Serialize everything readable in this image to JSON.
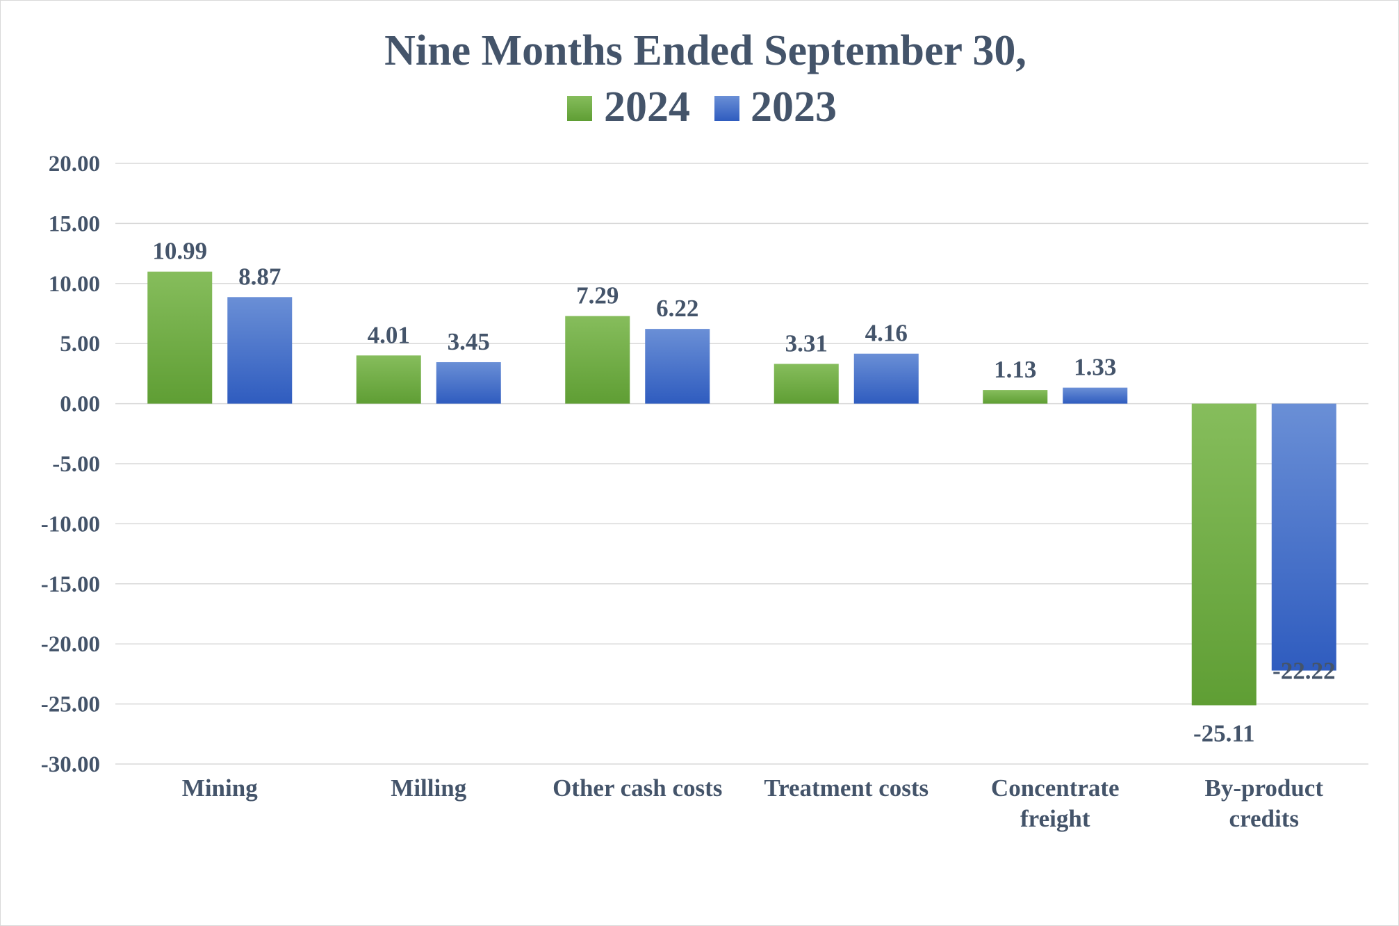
{
  "chart_data": {
    "type": "bar",
    "title": "Nine Months Ended September 30,",
    "categories": [
      "Mining",
      "Milling",
      "Other cash costs",
      "Treatment costs",
      "Concentrate freight",
      "By-product credits"
    ],
    "series": [
      {
        "name": "2024",
        "values": [
          10.99,
          4.01,
          7.29,
          3.31,
          1.13,
          -25.11
        ],
        "color": "#70ad47"
      },
      {
        "name": "2023",
        "values": [
          8.87,
          3.45,
          6.22,
          4.16,
          1.33,
          -22.22
        ],
        "color": "#4472c4"
      }
    ],
    "ylim": [
      -30,
      20
    ],
    "yticks": [
      "20.00",
      "15.00",
      "10.00",
      "5.00",
      "0.00",
      "-5.00",
      "-10.00",
      "-15.00",
      "-20.00",
      "-25.00",
      "-30.00"
    ],
    "grid": true,
    "legend": "top-center",
    "xlabel": "",
    "ylabel": ""
  }
}
